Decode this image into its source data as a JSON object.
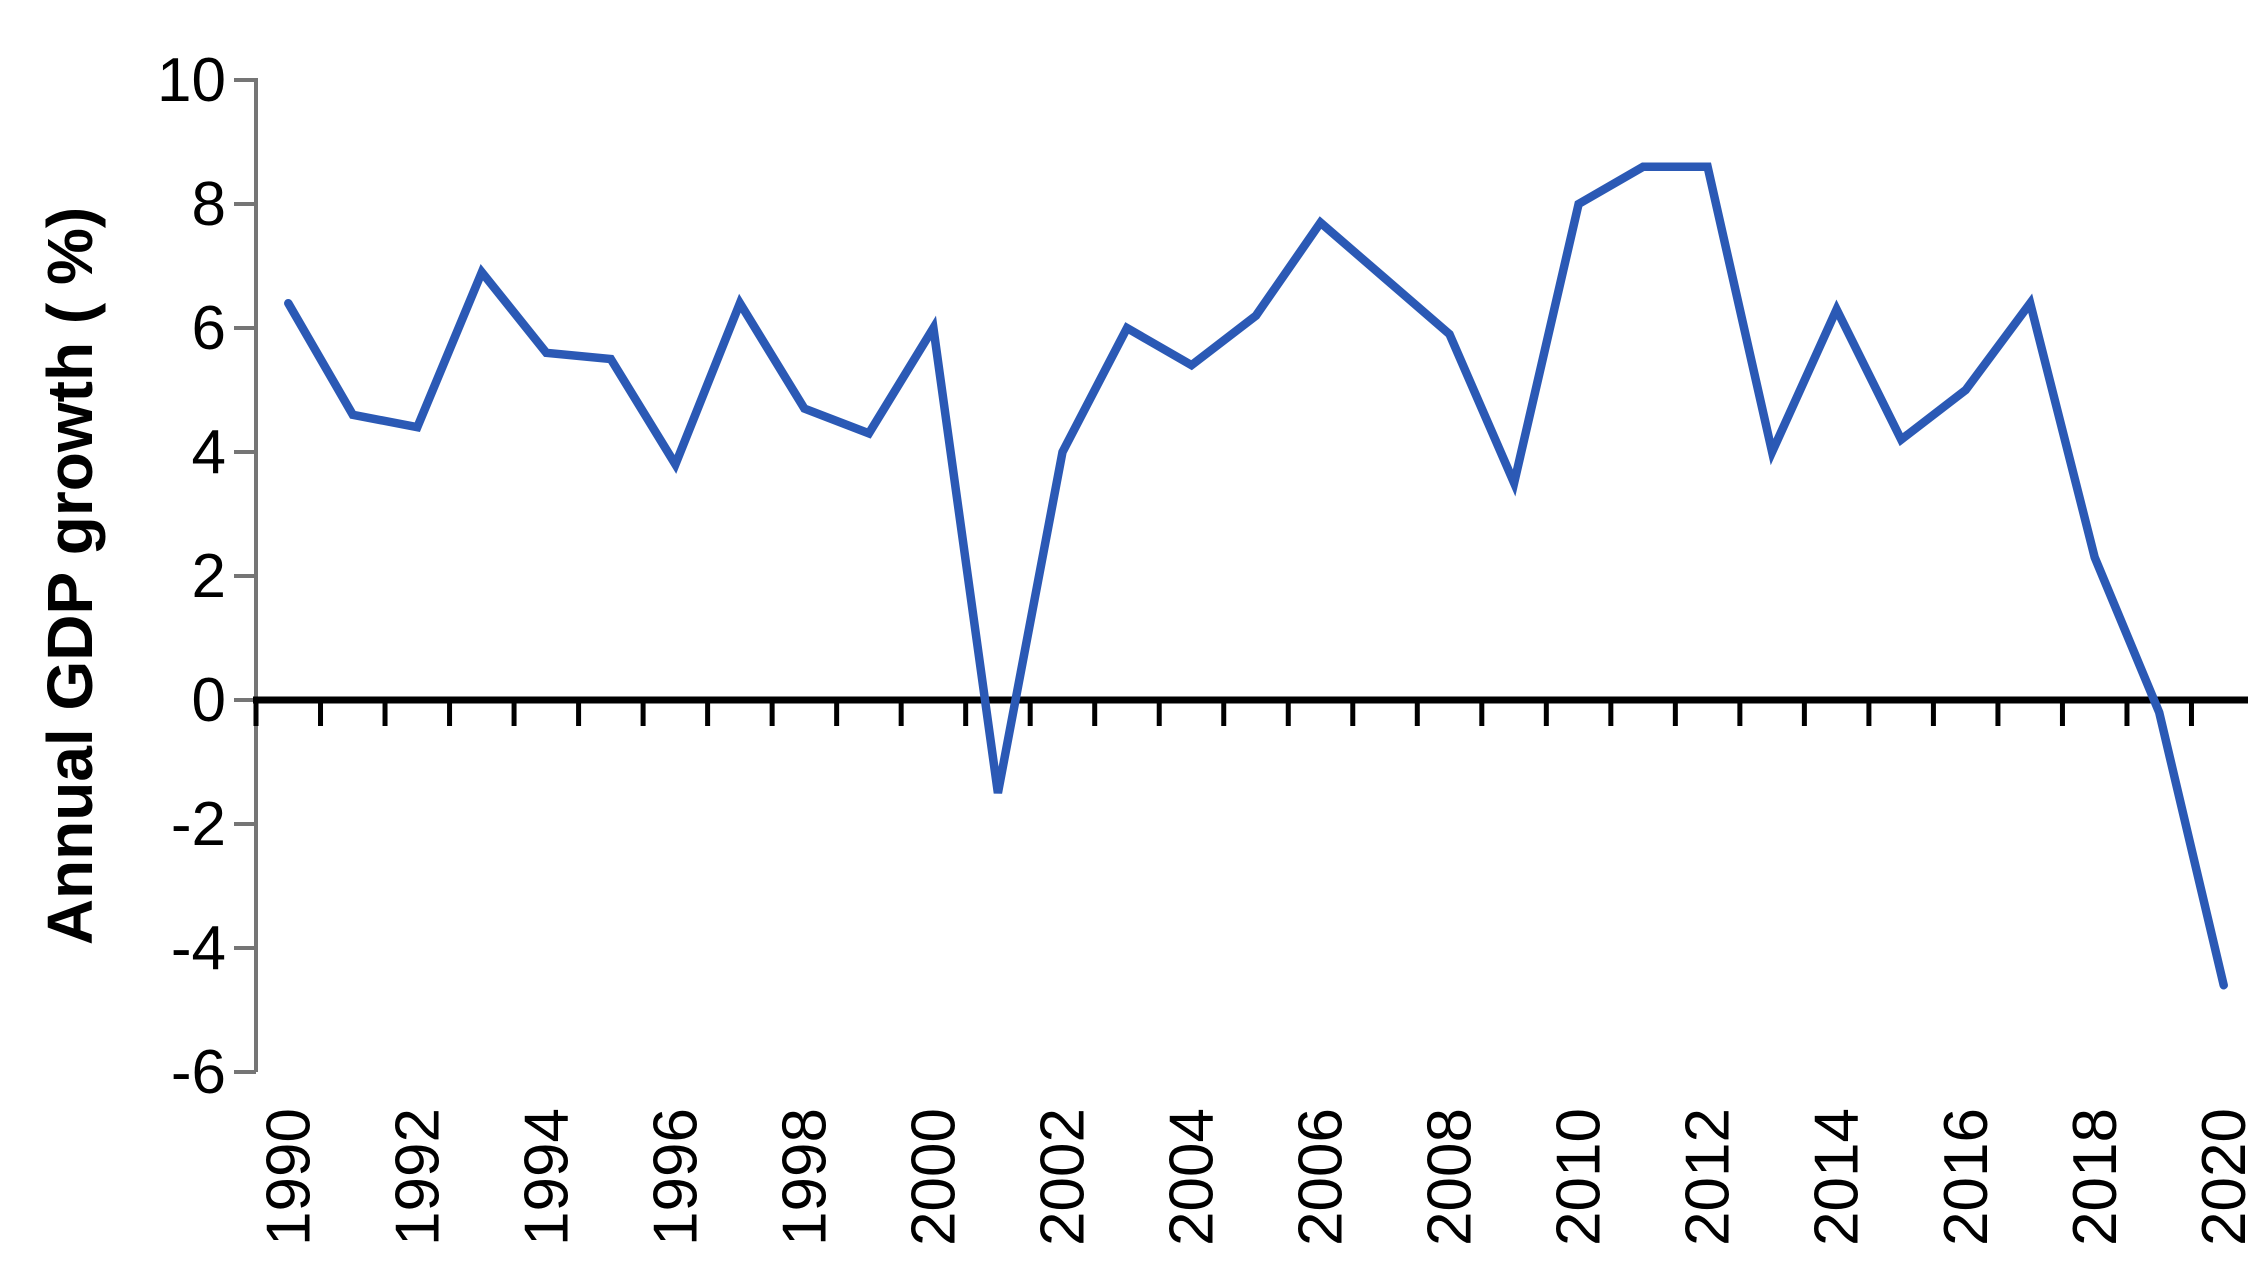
{
  "page": {
    "background": "#ffffff"
  },
  "chart_data": {
    "type": "line",
    "title": "",
    "xlabel": "",
    "ylabel": "Annual GDP growth ( %)",
    "x": [
      1990,
      1991,
      1992,
      1993,
      1994,
      1995,
      1996,
      1997,
      1998,
      1999,
      2000,
      2001,
      2002,
      2003,
      2004,
      2005,
      2006,
      2007,
      2008,
      2009,
      2010,
      2011,
      2012,
      2013,
      2014,
      2015,
      2016,
      2017,
      2018,
      2019,
      2020
    ],
    "series": [
      {
        "name": "Annual GDP growth (%)",
        "values": [
          6.4,
          4.6,
          4.4,
          6.9,
          5.6,
          5.5,
          3.8,
          6.4,
          4.7,
          4.3,
          6.0,
          -1.5,
          4.0,
          6.0,
          5.4,
          6.2,
          7.7,
          6.8,
          5.9,
          3.5,
          8.0,
          8.6,
          8.6,
          4.0,
          6.3,
          4.2,
          5.0,
          6.4,
          2.3,
          -0.2,
          -4.6
        ]
      }
    ],
    "ylim": [
      -6,
      10
    ],
    "yticks": [
      10,
      8,
      6,
      4,
      2,
      0,
      -2,
      -4,
      -6
    ],
    "ytick_labels": [
      "10",
      "8",
      "6",
      "4",
      "2",
      "0",
      "-2",
      "-4",
      "-6"
    ],
    "xtick_labels": [
      "1990",
      "1992",
      "1994",
      "1996",
      "1998",
      "2000",
      "2002",
      "2004",
      "2006",
      "2008",
      "2010",
      "2012",
      "2014",
      "2016",
      "2018",
      "2020"
    ],
    "x_label_every": 2,
    "grid": false,
    "legend": false,
    "line_color": "#2b59b5",
    "x_axis_color": "#000000",
    "y_axis_color": "#757575",
    "label_color": "#000000"
  }
}
